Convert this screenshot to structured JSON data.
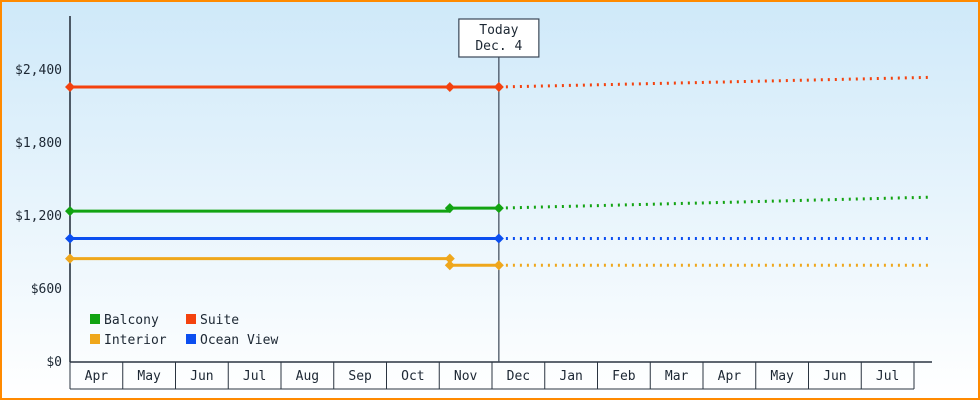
{
  "frame": {
    "border_color": "#ff8a00",
    "bg_top": "#cfe9f9",
    "bg_bottom": "#ffffff"
  },
  "chart_data": {
    "type": "line",
    "x_unit": "month-index (0 = start of first April cell)",
    "x_tick_labels": [
      "Apr",
      "May",
      "Jun",
      "Jul",
      "Aug",
      "Sep",
      "Oct",
      "Nov",
      "Dec",
      "Jan",
      "Feb",
      "Mar",
      "Apr",
      "May",
      "Jun",
      "Jul"
    ],
    "ylim": [
      0,
      2400
    ],
    "yticks": [
      {
        "value": 0,
        "label": "$0"
      },
      {
        "value": 600,
        "label": "$600"
      },
      {
        "value": 1200,
        "label": "$1,200"
      },
      {
        "value": 1800,
        "label": "$1,800"
      },
      {
        "value": 2400,
        "label": "$2,400"
      }
    ],
    "today": {
      "line1": "Today",
      "line2": "Dec. 4",
      "month_position": 8.13
    },
    "series": [
      {
        "name": "Balcony",
        "color": "#12a312",
        "solid": [
          [
            0,
            1240
          ],
          [
            7.2,
            1240
          ],
          [
            7.2,
            1265
          ],
          [
            8.13,
            1265
          ]
        ],
        "dashed": [
          [
            8.13,
            1265
          ],
          [
            16.35,
            1355
          ]
        ],
        "markers": [
          [
            0,
            1240
          ],
          [
            7.2,
            1265
          ],
          [
            8.13,
            1265
          ]
        ]
      },
      {
        "name": "Suite",
        "color": "#f4420e",
        "solid": [
          [
            0,
            2260
          ],
          [
            8.13,
            2260
          ]
        ],
        "dashed": [
          [
            8.13,
            2260
          ],
          [
            16.35,
            2340
          ]
        ],
        "markers": [
          [
            0,
            2260
          ],
          [
            7.2,
            2260
          ],
          [
            8.13,
            2260
          ]
        ]
      },
      {
        "name": "Interior",
        "color": "#efa71c",
        "solid": [
          [
            0,
            850
          ],
          [
            7.2,
            850
          ],
          [
            7.2,
            795
          ],
          [
            8.13,
            795
          ]
        ],
        "dashed": [
          [
            8.13,
            795
          ],
          [
            16.35,
            795
          ]
        ],
        "markers": [
          [
            0,
            850
          ],
          [
            7.2,
            850
          ],
          [
            7.2,
            795
          ],
          [
            8.13,
            795
          ]
        ]
      },
      {
        "name": "Ocean View",
        "color": "#0b4ef0",
        "solid": [
          [
            0,
            1015
          ],
          [
            8.13,
            1015
          ]
        ],
        "dashed": [
          [
            8.13,
            1015
          ],
          [
            16.35,
            1015
          ]
        ],
        "markers": [
          [
            0,
            1015
          ],
          [
            8.13,
            1015
          ]
        ]
      }
    ],
    "legend": {
      "position": "bottom-left",
      "rows": [
        [
          "Balcony",
          "Suite"
        ],
        [
          "Interior",
          "Ocean View"
        ]
      ]
    },
    "grid": false
  }
}
